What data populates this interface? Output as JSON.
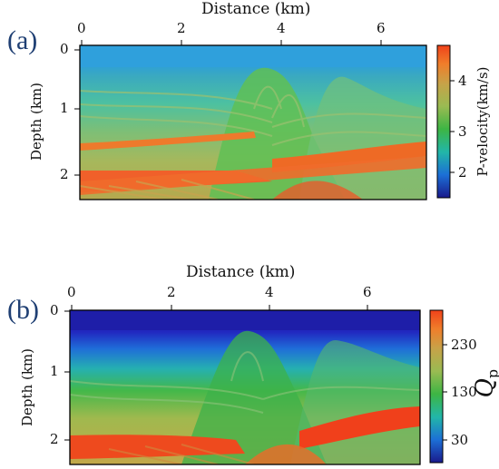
{
  "panel_a": {
    "tag": "(a)",
    "x_label": "Distance (km)",
    "y_label": "Depth (km)",
    "x_ticks": [
      "0",
      "2",
      "4",
      "6"
    ],
    "y_ticks": [
      "0",
      "1",
      "2"
    ],
    "colorbar_label": "P-velocity(km/s)",
    "colorbar_ticks": [
      "4",
      "3",
      "2"
    ],
    "colormap": [
      "#1a1a8c",
      "#1c6fd6",
      "#22b6a8",
      "#3db544",
      "#9abb52",
      "#c7a248",
      "#f07d2a",
      "#f0421a"
    ]
  },
  "panel_b": {
    "tag": "(b)",
    "x_label": "Distance (km)",
    "y_label": "Depth (km)",
    "x_ticks": [
      "0",
      "2",
      "4",
      "6"
    ],
    "y_ticks": [
      "0",
      "1",
      "2"
    ],
    "colorbar_symbol": "Q",
    "colorbar_subscript": "p",
    "colorbar_ticks": [
      "230",
      "130",
      "30"
    ],
    "colormap": [
      "#1a1a8c",
      "#1c6fd6",
      "#22b6a8",
      "#3db544",
      "#9abb52",
      "#c7a248",
      "#f07d2a",
      "#f0421a"
    ]
  }
}
